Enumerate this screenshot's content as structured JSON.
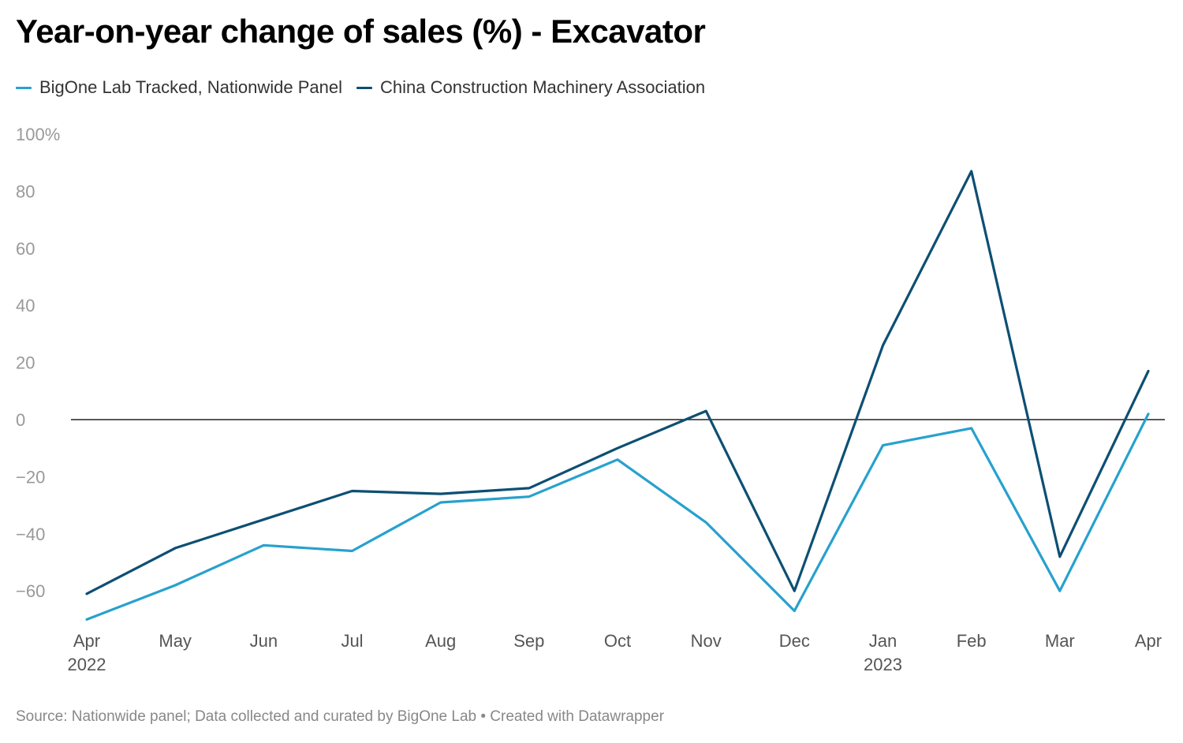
{
  "title": "Year-on-year change of sales (%) - Excavator",
  "source": "Source: Nationwide panel; Data collected and curated by BigOne Lab • Created with Datawrapper",
  "chart_data": {
    "type": "line",
    "title": "Year-on-year change of sales (%) - Excavator",
    "xlabel": "",
    "ylabel": "",
    "categories": [
      "Apr 2022",
      "May 2022",
      "Jun 2022",
      "Jul 2022",
      "Aug 2022",
      "Sep 2022",
      "Oct 2022",
      "Nov 2022",
      "Dec 2022",
      "Jan 2023",
      "Feb 2023",
      "Mar 2023",
      "Apr 2023"
    ],
    "x_tick_labels": [
      {
        "month": "Apr",
        "year": "2022"
      },
      {
        "month": "May",
        "year": ""
      },
      {
        "month": "Jun",
        "year": ""
      },
      {
        "month": "Jul",
        "year": ""
      },
      {
        "month": "Aug",
        "year": ""
      },
      {
        "month": "Sep",
        "year": ""
      },
      {
        "month": "Oct",
        "year": ""
      },
      {
        "month": "Nov",
        "year": ""
      },
      {
        "month": "Dec",
        "year": ""
      },
      {
        "month": "Jan",
        "year": "2023"
      },
      {
        "month": "Feb",
        "year": ""
      },
      {
        "month": "Mar",
        "year": ""
      },
      {
        "month": "Apr",
        "year": ""
      }
    ],
    "y_ticks": [
      100,
      80,
      60,
      40,
      20,
      0,
      -20,
      -40,
      -60
    ],
    "y_tick_labels": [
      "100%",
      "80",
      "60",
      "40",
      "20",
      "0",
      "−20",
      "−40",
      "−60"
    ],
    "ylim": [
      -70,
      100
    ],
    "grid": false,
    "zero_line": true,
    "legend_position": "top-left",
    "series": [
      {
        "name": "BigOne Lab Tracked, Nationwide Panel",
        "color": "#27a1ce",
        "values": [
          -70,
          -58,
          -44,
          -46,
          -29,
          -27,
          -14,
          -36,
          -67,
          -9,
          -3,
          -60,
          2
        ]
      },
      {
        "name": "China Construction Machinery Association",
        "color": "#0d4f73",
        "values": [
          -61,
          -45,
          -35,
          -25,
          -26,
          -24,
          -10,
          3,
          -60,
          26,
          87,
          -48,
          17
        ]
      }
    ]
  }
}
